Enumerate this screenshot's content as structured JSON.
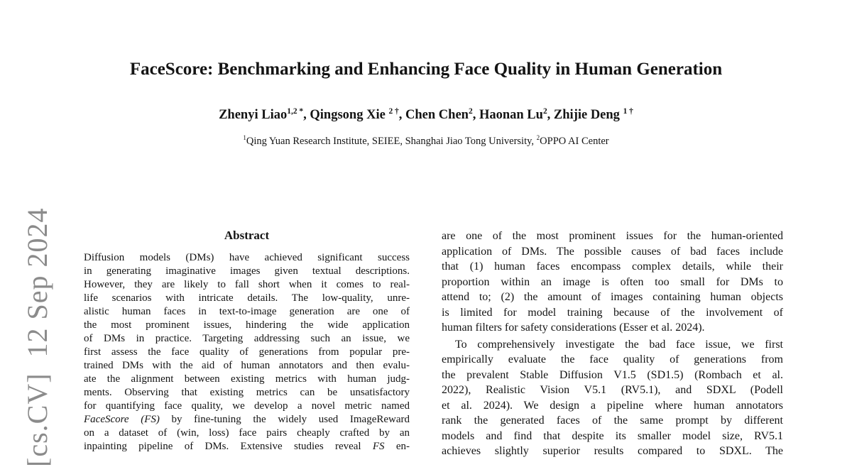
{
  "watermark": {
    "text": "[cs.CV]  12 Sep 2024",
    "color": "#8b8b8b"
  },
  "header": {
    "title": "FaceScore: Benchmarking and Enhancing Face Quality in Human Generation",
    "authors": "Zhenyi Liao^{1,2 *}, Qingsong Xie ^{2 †}, Chen Chen^{2}, Haonan Lu^{2}, Zhijie Deng ^{1 †}",
    "affiliation": "^{1}Qing Yuan Research Institute, SEIEE, Shanghai Jiao Tong University, ^{2}OPPO AI Center"
  },
  "abstract": {
    "heading": "Abstract",
    "lines": [
      "Diffusion models (DMs) have achieved significant success",
      "in generating imaginative images given textual descriptions.",
      "However, they are likely to fall short when it comes to real-",
      "life scenarios with intricate details. The low-quality, unre-",
      "alistic human faces in text-to-image generation are one of",
      "the most prominent issues, hindering the wide application",
      "of DMs in practice. Targeting addressing such an issue, we",
      "first assess the face quality of generations from popular pre-",
      "trained DMs with the aid of human annotators and then evalu-",
      "ate the alignment between existing metrics with human judg-",
      "ments. Observing that existing metrics can be unsatisfactory",
      "for quantifying face quality, we develop a novel metric named",
      "*FaceScore (FS)* by fine-tuning the widely used ImageReward",
      "on a dataset of (win, loss) face pairs cheaply crafted by an",
      "inpainting pipeline of DMs. Extensive studies reveal *FS* en-"
    ]
  },
  "body": {
    "para1_lines": [
      "are one of the most prominent issues for the human-oriented",
      "application of DMs. The possible causes of bad faces include",
      "that (1) human faces encompass complex details, while their",
      "proportion within an image is often too small for DMs to",
      "attend to; (2) the amount of images containing human objects",
      "is limited for model training because of the involvement of",
      "human filters for safety considerations (Esser et al. 2024)."
    ],
    "para2_lines": [
      "To comprehensively investigate the bad face issue, we first",
      "empirically evaluate the face quality of generations from",
      "the prevalent Stable Diffusion V1.5 (SD1.5) (Rombach et al.",
      "2022), Realistic Vision V5.1 (RV5.1), and SDXL (Podell",
      "et al. 2024). We design a pipeline where human annotators",
      "rank the generated faces of the same prompt by different",
      "models and find that despite its smaller model size, RV5.1",
      "achieves slightly superior results compared to SDXL. The"
    ]
  }
}
